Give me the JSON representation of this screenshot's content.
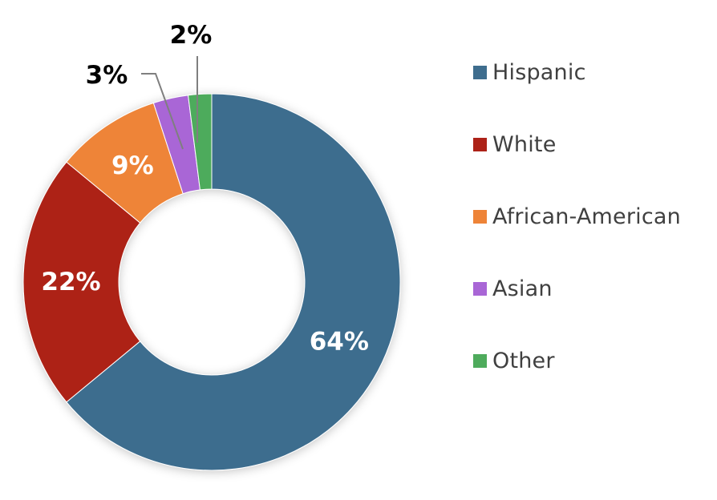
{
  "chart_data": {
    "type": "pie",
    "variant": "donut",
    "slices": [
      {
        "label": "Hispanic",
        "value": 64,
        "display": "64%",
        "color": "#3e6d8e",
        "label_color": "#ffffff",
        "label_placement": "inside"
      },
      {
        "label": "White",
        "value": 22,
        "display": "22%",
        "color": "#ad2218",
        "label_color": "#ffffff",
        "label_placement": "inside"
      },
      {
        "label": "African-American",
        "value": 9,
        "display": "9%",
        "color": "#ee8438",
        "label_color": "#ffffff",
        "label_placement": "inside"
      },
      {
        "label": "Asian",
        "value": 3,
        "display": "3%",
        "color": "#a966d6",
        "label_color": "#000000",
        "label_placement": "outside-leader"
      },
      {
        "label": "Other",
        "value": 2,
        "display": "2%",
        "color": "#4eab5c",
        "label_color": "#000000",
        "label_placement": "outside-leader"
      }
    ],
    "start": "12 o'clock",
    "direction": "clockwise",
    "legend_position": "right"
  }
}
